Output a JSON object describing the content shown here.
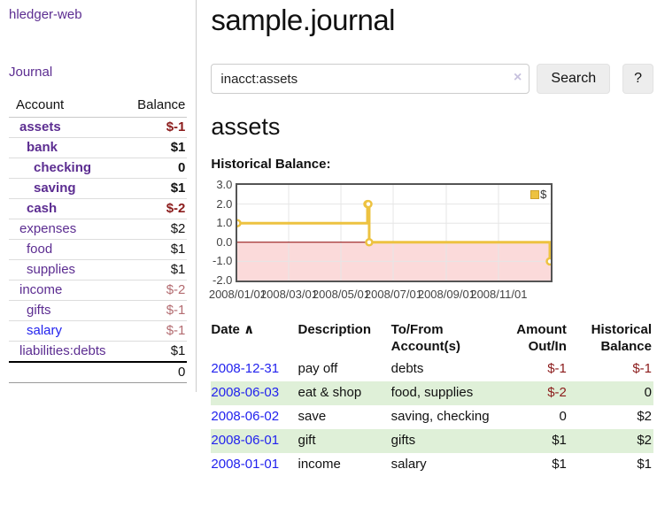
{
  "sidebar": {
    "brand": "hledger-web",
    "nav": {
      "journal": "Journal"
    },
    "accounts_table": {
      "headers": {
        "account": "Account",
        "balance": "Balance"
      },
      "rows": [
        {
          "label": "assets",
          "indent": 12,
          "row_class": "bold",
          "link_class": "plink",
          "balance": "$-1",
          "bal_class": "neg-strong"
        },
        {
          "label": "bank",
          "indent": 20,
          "row_class": "bold",
          "link_class": "plink",
          "balance": "$1",
          "bal_class": ""
        },
        {
          "label": "checking",
          "indent": 28,
          "row_class": "bold",
          "link_class": "plink",
          "balance": "0",
          "bal_class": ""
        },
        {
          "label": "saving",
          "indent": 28,
          "row_class": "bold",
          "link_class": "plink",
          "balance": "$1",
          "bal_class": ""
        },
        {
          "label": "cash",
          "indent": 20,
          "row_class": "bold",
          "link_class": "plink",
          "balance": "$-2",
          "bal_class": "neg-strong"
        },
        {
          "label": "expenses",
          "indent": 12,
          "row_class": "",
          "link_class": "plink",
          "balance": "$2",
          "bal_class": ""
        },
        {
          "label": "food",
          "indent": 20,
          "row_class": "",
          "link_class": "plink",
          "balance": "$1",
          "bal_class": ""
        },
        {
          "label": "supplies",
          "indent": 20,
          "row_class": "",
          "link_class": "plink",
          "balance": "$1",
          "bal_class": ""
        },
        {
          "label": "income",
          "indent": 12,
          "row_class": "",
          "link_class": "plink",
          "balance": "$-2",
          "bal_class": "neg-muted"
        },
        {
          "label": "gifts",
          "indent": 20,
          "row_class": "",
          "link_class": "plink",
          "balance": "$-1",
          "bal_class": "neg-muted"
        },
        {
          "label": "salary",
          "indent": 20,
          "row_class": "",
          "link_class": "blink",
          "balance": "$-1",
          "bal_class": "neg-muted"
        },
        {
          "label": "liabilities:debts",
          "indent": 12,
          "row_class": "",
          "link_class": "plink",
          "balance": "$1",
          "bal_class": ""
        }
      ],
      "total": "0"
    }
  },
  "header": {
    "title": "sample.journal"
  },
  "search": {
    "value": "inacct:assets",
    "clear_icon": "×",
    "button": "Search",
    "help_button": "?"
  },
  "account_page": {
    "title": "assets",
    "chart_label": "Historical Balance:"
  },
  "chart_data": {
    "type": "line",
    "line_style": "steps",
    "title": "Historical Balance:",
    "series": [
      {
        "name": "$",
        "color": "#edc240",
        "points": [
          [
            "2008/01/01",
            1
          ],
          [
            "2008/06/01",
            2
          ],
          [
            "2008/06/02",
            2
          ],
          [
            "2008/06/03",
            0
          ],
          [
            "2008/12/31",
            -1
          ]
        ]
      }
    ],
    "xlim": [
      "2008/01/01",
      "2009/01/01"
    ],
    "ylim": [
      -2,
      3
    ],
    "x_ticks": [
      "2008/01/01",
      "2008/03/01",
      "2008/05/01",
      "2008/07/01",
      "2008/09/01",
      "2008/11/01"
    ],
    "y_ticks": [
      "3.0",
      "2.0",
      "1.0",
      "0.0",
      "-1.0",
      "-2.0"
    ],
    "grid": true,
    "grid_color": "#e6e6e6",
    "legend": {
      "label": "$",
      "position": "top-right"
    },
    "negative_region_fill": "#fbdada",
    "zero_line_color": "#8b0000",
    "axis_text_color": "#444444"
  },
  "register": {
    "columns": {
      "date": "Date",
      "sort_icon": "∧",
      "description": "Description",
      "accounts": "To/From Account(s)",
      "amount": "Amount Out/In",
      "balance": "Historical Balance"
    },
    "rows": [
      {
        "date": "2008-12-31",
        "description": "pay off",
        "accounts": "debts",
        "amount": "$-1",
        "amount_class": "neg",
        "balance": "$-1",
        "balance_class": "neg"
      },
      {
        "date": "2008-06-03",
        "description": "eat & shop",
        "accounts": "food, supplies",
        "amount": "$-2",
        "amount_class": "neg",
        "balance": "0",
        "balance_class": ""
      },
      {
        "date": "2008-06-02",
        "description": "save",
        "accounts": "saving, checking",
        "amount": "0",
        "amount_class": "",
        "balance": "$2",
        "balance_class": ""
      },
      {
        "date": "2008-06-01",
        "description": "gift",
        "accounts": "gifts",
        "amount": "$1",
        "amount_class": "",
        "balance": "$2",
        "balance_class": ""
      },
      {
        "date": "2008-01-01",
        "description": "income",
        "accounts": "salary",
        "amount": "$1",
        "amount_class": "",
        "balance": "$1",
        "balance_class": ""
      }
    ]
  }
}
